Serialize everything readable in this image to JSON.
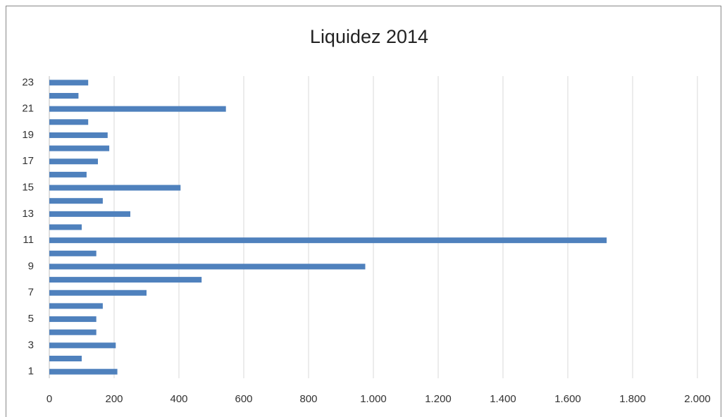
{
  "chart_data": {
    "type": "bar",
    "orientation": "horizontal",
    "title": "Liquidez 2014",
    "categories": [
      "1",
      null,
      "3",
      null,
      "5",
      null,
      "7",
      null,
      "9",
      null,
      "11",
      null,
      "13",
      null,
      "15",
      null,
      "17",
      null,
      "19",
      null,
      "21",
      null,
      "23"
    ],
    "values": [
      210,
      100,
      205,
      145,
      145,
      165,
      300,
      470,
      975,
      145,
      1720,
      100,
      250,
      165,
      405,
      115,
      150,
      185,
      180,
      120,
      545,
      90,
      120
    ],
    "color": "#4f81bd",
    "xlim": [
      0,
      2000
    ],
    "xticks": [
      0,
      200,
      400,
      600,
      800,
      {
        "value": 1000,
        "label": "1.000"
      },
      {
        "value": 1200,
        "label": "1.200"
      },
      {
        "value": 1400,
        "label": "1.400"
      },
      {
        "value": 1600,
        "label": "1.600"
      },
      {
        "value": 1800,
        "label": "1.800"
      },
      {
        "value": 2000,
        "label": "2.000"
      }
    ],
    "grid": true
  }
}
